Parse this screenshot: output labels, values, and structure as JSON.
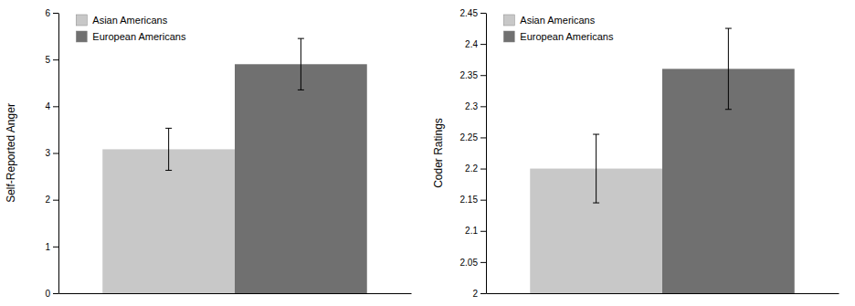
{
  "chart_data": [
    {
      "type": "bar",
      "ylabel": "Self-Reported Anger",
      "categories": [
        "Asian Americans",
        "European Americans"
      ],
      "values": [
        3.08,
        4.9
      ],
      "errors": [
        0.45,
        0.55
      ],
      "colors": [
        "#c8c8c8",
        "#707070"
      ],
      "ylim": [
        0,
        6
      ],
      "yticks": [
        0,
        1,
        2,
        3,
        4,
        5,
        6
      ],
      "grid": false,
      "legend": "upper left",
      "tick_labels": "y"
    },
    {
      "type": "bar",
      "ylabel": "Coder Ratings",
      "categories": [
        "Asian Americans",
        "European Americans"
      ],
      "values": [
        2.2,
        2.36
      ],
      "errors": [
        0.055,
        0.065
      ],
      "colors": [
        "#c8c8c8",
        "#707070"
      ],
      "ylim": [
        2.0,
        2.45
      ],
      "yticks": [
        2,
        2.05,
        2.1,
        2.15,
        2.2,
        2.25,
        2.3,
        2.35,
        2.4,
        2.45
      ],
      "grid": false,
      "legend": "upper left",
      "tick_labels": "y"
    }
  ]
}
